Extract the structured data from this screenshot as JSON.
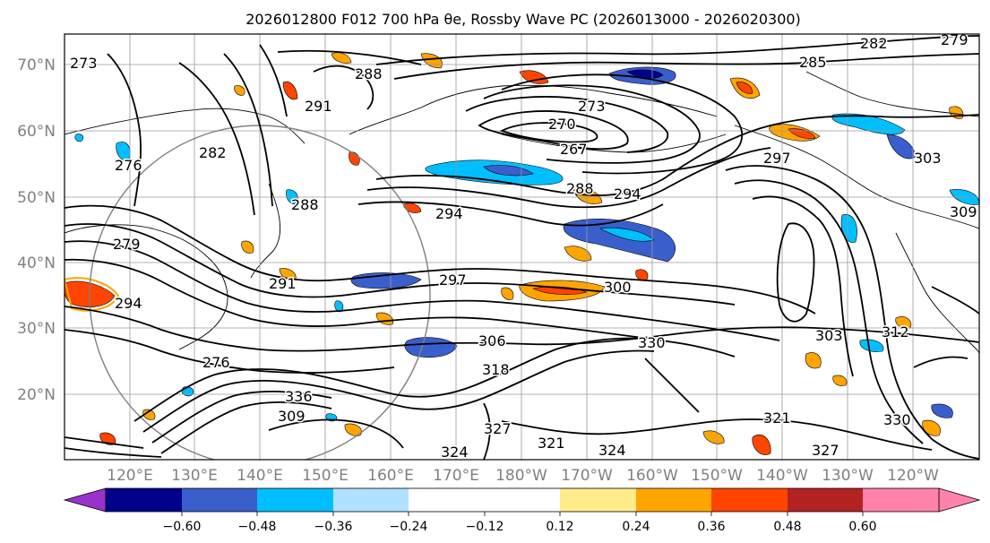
{
  "title": "2026012800 F012 700 hPa θe, Rossby Wave PC (2026013000 - 2026020300)",
  "lat_labels": [
    "70°N",
    "60°N",
    "50°N",
    "40°N",
    "30°N",
    "20°N"
  ],
  "lon_labels": [
    "120°E",
    "130°E",
    "140°E",
    "150°E",
    "160°E",
    "170°E",
    "180°W",
    "170°W",
    "160°W",
    "150°W",
    "140°W",
    "130°W",
    "120°W"
  ],
  "colorbar": {
    "colors": [
      "#9932cc",
      "#00008b",
      "#3a5fcd",
      "#00bfff",
      "#b0e2ff",
      "#ffffff",
      "#ffec8b",
      "#ffa500",
      "#ff4500",
      "#b22222",
      "#ff82ab"
    ],
    "tick_labels": [
      "−0.60",
      "−0.48",
      "−0.36",
      "−0.24",
      "−0.12",
      "0.12",
      "0.24",
      "0.36",
      "0.48",
      "0.60"
    ]
  },
  "contour_labels": [
    "282",
    "279",
    "285",
    "288",
    "291",
    "273",
    "270",
    "273",
    "267",
    "276",
    "282",
    "288",
    "294",
    "288",
    "294",
    "297",
    "279",
    "294",
    "291",
    "297",
    "300",
    "306",
    "303",
    "309",
    "312",
    "330",
    "336",
    "321",
    "321",
    "324",
    "324",
    "327",
    "330",
    "276",
    "303",
    "309",
    "327",
    "318"
  ]
}
